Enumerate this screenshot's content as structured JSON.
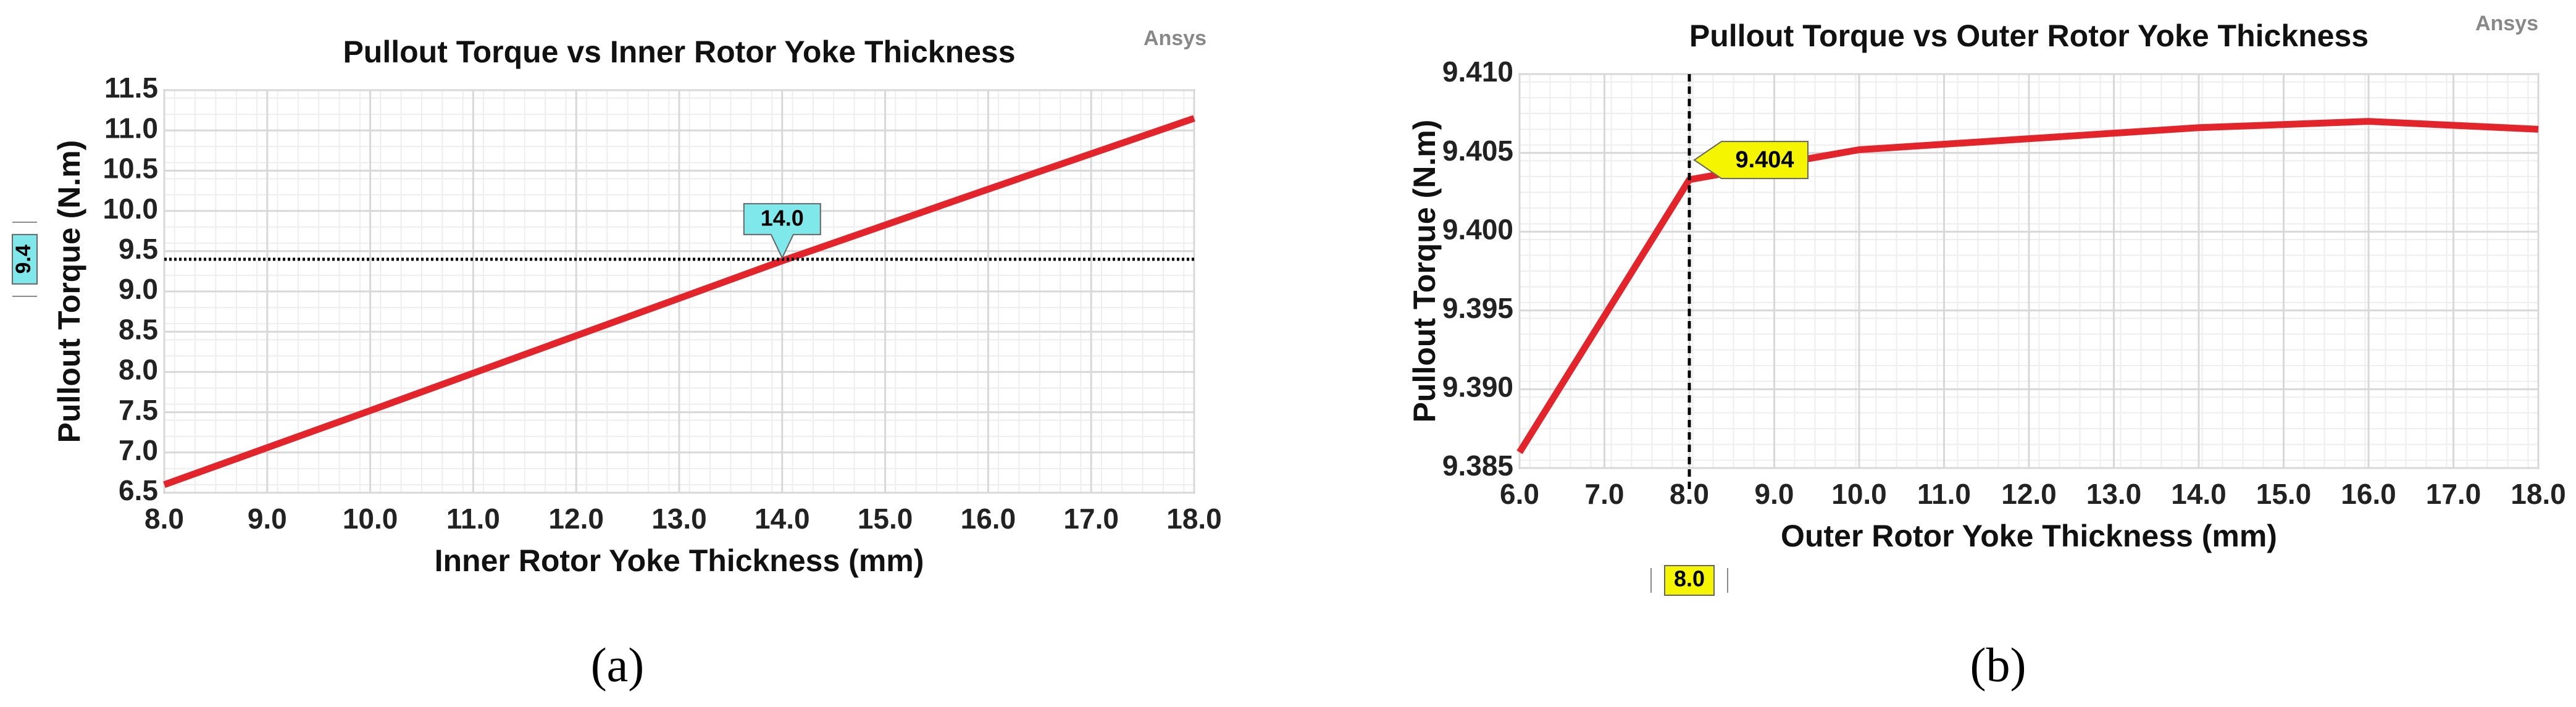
{
  "chart_data": [
    {
      "type": "line",
      "title": "Pullout Torque vs Inner Rotor Yoke Thickness",
      "watermark": "Ansys",
      "caption": "(a)",
      "x_label": "Inner Rotor Yoke Thickness (mm)",
      "y_label": "Pullout Torque (N.m)",
      "x": [
        8,
        10,
        12,
        14,
        16,
        18
      ],
      "series": [
        {
          "name": "Pullout Torque",
          "color": "#e3242b",
          "values": [
            6.6,
            7.52,
            8.45,
            9.38,
            10.27,
            11.15
          ]
        }
      ],
      "xlim": [
        8,
        18
      ],
      "xticks": [
        {
          "value": 8,
          "label": "8.0"
        },
        {
          "value": 9,
          "label": "9.0"
        },
        {
          "value": 10,
          "label": "10.0"
        },
        {
          "value": 11,
          "label": "11.0"
        },
        {
          "value": 12,
          "label": "12.0"
        },
        {
          "value": 13,
          "label": "13.0"
        },
        {
          "value": 14,
          "label": "14.0"
        },
        {
          "value": 15,
          "label": "15.0"
        },
        {
          "value": 16,
          "label": "16.0"
        },
        {
          "value": 17,
          "label": "17.0"
        },
        {
          "value": 18,
          "label": "18.0"
        }
      ],
      "ylim": [
        6.5,
        11.5
      ],
      "yticks": [
        6.5,
        {
          "value": 7,
          "label": "7.0"
        },
        7.5,
        {
          "value": 8,
          "label": "8.0"
        },
        8.5,
        {
          "value": 9,
          "label": "9.0"
        },
        9.5,
        {
          "value": 10,
          "label": "10.0"
        },
        10.5,
        {
          "value": 11,
          "label": "11.0"
        },
        11.5
      ],
      "grid": true,
      "marker": {
        "x": {
          "value": 14,
          "label": "14.0"
        },
        "y": {
          "value": 9.4,
          "label": "9.4"
        },
        "color": "#7fe8ea"
      }
    },
    {
      "type": "line",
      "title": "Pullout Torque vs Outer Rotor Yoke Thickness",
      "watermark": "Ansys",
      "caption": "(b)",
      "x_label": "Outer Rotor Yoke Thickness (mm)",
      "y_label": "Pullout Torque (N.m)",
      "x": [
        6,
        8,
        10,
        12,
        14,
        16,
        18
      ],
      "series": [
        {
          "name": "Pullout Torque",
          "color": "#e3242b",
          "values": [
            9.386,
            9.4033,
            9.4052,
            9.4059,
            9.4066,
            9.407,
            9.4065
          ]
        }
      ],
      "xlim": [
        6,
        18
      ],
      "xticks": [
        {
          "value": 6,
          "label": "6.0"
        },
        {
          "value": 7,
          "label": "7.0"
        },
        {
          "value": 8,
          "label": "8.0"
        },
        {
          "value": 9,
          "label": "9.0"
        },
        {
          "value": 10,
          "label": "10.0"
        },
        {
          "value": 11,
          "label": "11.0"
        },
        {
          "value": 12,
          "label": "12.0"
        },
        {
          "value": 13,
          "label": "13.0"
        },
        {
          "value": 14,
          "label": "14.0"
        },
        {
          "value": 15,
          "label": "15.0"
        },
        {
          "value": 16,
          "label": "16.0"
        },
        {
          "value": 17,
          "label": "17.0"
        },
        {
          "value": 18,
          "label": "18.0"
        }
      ],
      "ylim": [
        9.385,
        9.41
      ],
      "yticks": [
        9.385,
        {
          "value": 9.39,
          "label": "9.390"
        },
        9.395,
        {
          "value": 9.4,
          "label": "9.400"
        },
        9.405,
        {
          "value": 9.41,
          "label": "9.410"
        }
      ],
      "grid": true,
      "marker": {
        "x": {
          "value": 8,
          "label": "8.0"
        },
        "y": 9.404,
        "color": "#f5f500"
      }
    }
  ]
}
